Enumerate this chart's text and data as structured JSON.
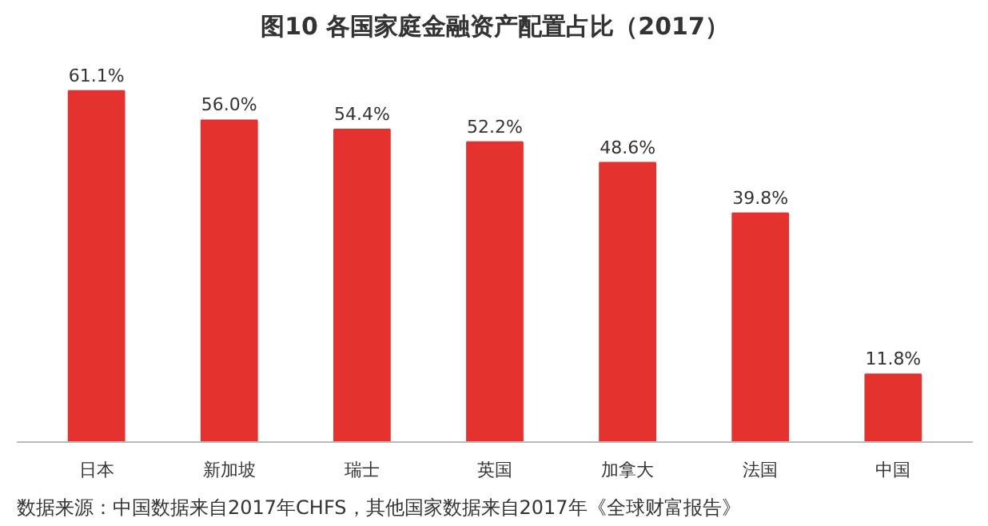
{
  "chart_data": {
    "type": "bar",
    "title": "图10 各国家庭金融资产配置占比（2017）",
    "categories": [
      "日本",
      "新加坡",
      "瑞士",
      "英国",
      "加拿大",
      "法国",
      "中国"
    ],
    "values": [
      61.1,
      56.0,
      54.4,
      52.2,
      48.6,
      39.8,
      11.8
    ],
    "value_labels": [
      "61.1%",
      "56.0%",
      "54.4%",
      "52.2%",
      "48.6%",
      "39.8%",
      "11.8%"
    ],
    "color": "#e5322e",
    "annotations": [
      "数据来源：中国数据来自2017年CHFS，其他国家数据来自2017年《全球财富报告》"
    ],
    "grid": false
  }
}
